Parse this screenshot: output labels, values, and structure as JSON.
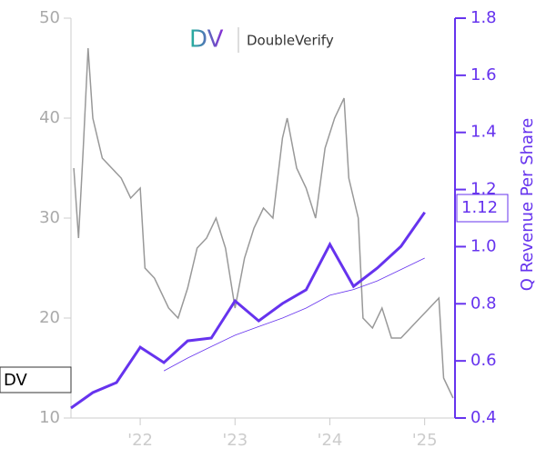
{
  "chart_data": {
    "type": "line",
    "logo": {
      "mark": "DV",
      "name": "DoubleVerify"
    },
    "y2label": "Q Revenue Per Share",
    "xlim": [
      2021.27,
      2025.32
    ],
    "xticks": [
      {
        "value": 2022,
        "label": "'22"
      },
      {
        "value": 2023,
        "label": "'23"
      },
      {
        "value": 2024,
        "label": "'24"
      },
      {
        "value": 2025,
        "label": "'25"
      }
    ],
    "ylim": [
      10,
      50
    ],
    "yticks": [
      10,
      20,
      30,
      40,
      50
    ],
    "y2lim": [
      0.4,
      1.8
    ],
    "y2ticks": [
      0.4,
      0.6,
      0.8,
      {
        "value": 1,
        "label": "1.0"
      },
      1.2,
      1.4,
      1.6,
      1.8
    ],
    "series": [
      {
        "name": "DV",
        "color": "#999999",
        "x": [
          2021.3,
          2021.35,
          2021.4,
          2021.45,
          2021.5,
          2021.6,
          2021.7,
          2021.8,
          2021.9,
          2022.0,
          2022.05,
          2022.15,
          2022.3,
          2022.4,
          2022.5,
          2022.6,
          2022.7,
          2022.8,
          2022.9,
          2023.0,
          2023.1,
          2023.2,
          2023.3,
          2023.4,
          2023.5,
          2023.55,
          2023.65,
          2023.75,
          2023.85,
          2023.95,
          2024.05,
          2024.15,
          2024.2,
          2024.3,
          2024.35,
          2024.45,
          2024.55,
          2024.65,
          2024.75,
          2024.85,
          2024.95,
          2025.05,
          2025.15,
          2025.2,
          2025.3
        ],
        "values": [
          35,
          28,
          37,
          47,
          40,
          36,
          35,
          34,
          32,
          33,
          25,
          24,
          21,
          20,
          23,
          27,
          28,
          30,
          27,
          21,
          26,
          29,
          31,
          30,
          38,
          40,
          35,
          33,
          30,
          37,
          40,
          42,
          34,
          30,
          20,
          19,
          21,
          18,
          18,
          19,
          20,
          21,
          22,
          14,
          12
        ]
      },
      {
        "color": "#6633ee",
        "axis": "y2",
        "x": [
          2021.27,
          2021.5,
          2021.75,
          2022.0,
          2022.25,
          2022.5,
          2022.75,
          2023.0,
          2023.25,
          2023.5,
          2023.75,
          2024.0,
          2024.25,
          2024.5,
          2024.75,
          2025.0
        ],
        "values": [
          0.435,
          0.489,
          0.524,
          0.648,
          0.594,
          0.67,
          0.68,
          0.81,
          0.74,
          0.801,
          0.849,
          1.008,
          0.861,
          0.925,
          1.001,
          1.12
        ]
      },
      {
        "color": "#6633ee",
        "axis": "y2",
        "x": [
          2022.25,
          2022.5,
          2022.75,
          2023.0,
          2023.25,
          2023.5,
          2023.75,
          2024.0,
          2024.25,
          2024.5,
          2024.75,
          2025.0
        ],
        "values": [
          0.565,
          0.61,
          0.65,
          0.69,
          0.72,
          0.75,
          0.785,
          0.83,
          0.85,
          0.88,
          0.92,
          0.96
        ]
      }
    ]
  }
}
